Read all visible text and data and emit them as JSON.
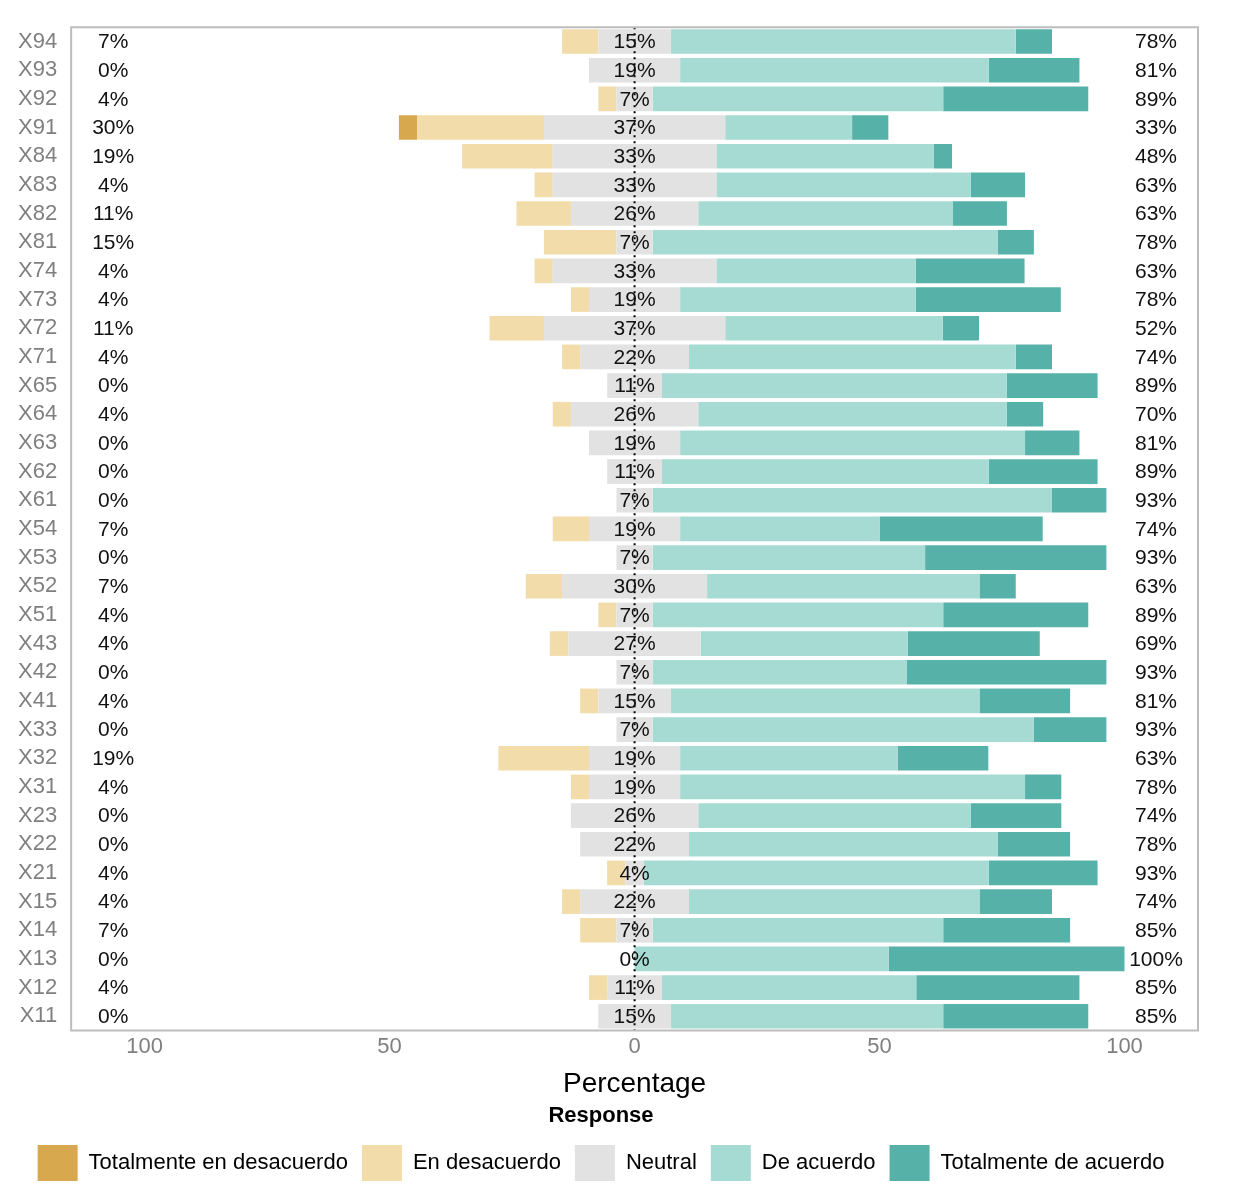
{
  "chart_data": {
    "type": "bar",
    "orientation": "horizontal",
    "stacked": true,
    "xlabel": "Percentage",
    "legend_title": "Response",
    "legend": "bottom",
    "grid": false,
    "categories": [
      "X94",
      "X93",
      "X92",
      "X91",
      "X84",
      "X83",
      "X82",
      "X81",
      "X74",
      "X73",
      "X72",
      "X71",
      "X65",
      "X64",
      "X63",
      "X62",
      "X61",
      "X54",
      "X53",
      "X52",
      "X51",
      "X43",
      "X42",
      "X41",
      "X33",
      "X32",
      "X31",
      "X23",
      "X22",
      "X21",
      "X15",
      "X14",
      "X13",
      "X12",
      "X11"
    ],
    "series": [
      {
        "name": "Neutral",
        "color": "#e2e2e2",
        "values": [
          -7.4,
          -9.3,
          -3.7,
          -18.5,
          -16.7,
          -16.7,
          -13,
          -3.7,
          -16.7,
          -9.3,
          -18.5,
          -11.1,
          -5.6,
          -13,
          -9.3,
          -5.6,
          -3.7,
          -9.3,
          -3.7,
          -14.8,
          -3.7,
          -13.5,
          -3.7,
          -7.4,
          -3.7,
          -9.3,
          -9.3,
          -13,
          -11.1,
          -1.9,
          -11.1,
          -3.7,
          0,
          -5.6,
          -7.4
        ]
      },
      {
        "name": "En desacuerdo",
        "color": "#f2dcaa",
        "values": [
          -7.4,
          0,
          -3.7,
          -25.9,
          -18.5,
          -3.7,
          -11.1,
          -14.8,
          -3.7,
          -3.7,
          -11.1,
          -3.7,
          0,
          -3.7,
          0,
          0,
          0,
          -7.4,
          0,
          -7.4,
          -3.7,
          -3.8,
          0,
          -3.7,
          0,
          -18.5,
          -3.7,
          0,
          0,
          -3.7,
          -3.7,
          -7.4,
          0,
          -3.7,
          0
        ]
      },
      {
        "name": "Totalmente en desacuerdo",
        "color": "#d8a84e",
        "values": [
          0,
          0,
          0,
          -3.7,
          0,
          0,
          0,
          0,
          0,
          0,
          0,
          0,
          0,
          0,
          0,
          0,
          0,
          0,
          0,
          0,
          0,
          0,
          0,
          0,
          0,
          0,
          0,
          0,
          0,
          0,
          0,
          0,
          0,
          0,
          0
        ]
      },
      {
        "color": "#e2e2e2",
        "values": [
          7.4,
          9.3,
          3.7,
          18.5,
          16.7,
          16.7,
          13,
          3.7,
          16.7,
          9.3,
          18.5,
          11.1,
          5.6,
          13,
          9.3,
          5.6,
          3.7,
          9.3,
          3.7,
          14.8,
          3.7,
          13.5,
          3.7,
          7.4,
          3.7,
          9.3,
          9.3,
          13,
          11.1,
          1.9,
          11.1,
          3.7,
          0,
          5.6,
          7.4
        ]
      },
      {
        "name": "De acuerdo",
        "color": "#a6dbd3",
        "values": [
          70.4,
          63,
          59.3,
          25.9,
          44.4,
          51.9,
          51.9,
          70.4,
          40.7,
          48.1,
          44.4,
          66.7,
          70.4,
          63,
          70.4,
          66.7,
          81.5,
          40.7,
          55.6,
          55.6,
          59.3,
          42.3,
          51.9,
          63,
          77.8,
          44.4,
          70.4,
          55.6,
          63,
          70.4,
          59.3,
          59.3,
          51.9,
          51.9,
          55.6
        ]
      },
      {
        "name": "Totalmente de acuerdo",
        "color": "#56b1a8",
        "values": [
          7.4,
          18.5,
          29.6,
          7.4,
          3.7,
          11.1,
          11.1,
          7.4,
          22.2,
          29.6,
          7.4,
          7.4,
          18.5,
          7.4,
          11.1,
          22.2,
          11.1,
          33.3,
          37,
          7.4,
          29.6,
          26.9,
          40.7,
          18.5,
          14.8,
          18.5,
          7.4,
          18.5,
          14.8,
          22.2,
          14.8,
          25.9,
          48.1,
          33.3,
          29.6
        ]
      }
    ],
    "xlim": [
      -115,
      115
    ],
    "xticks": [
      {
        "value": -100,
        "label": "100"
      },
      {
        "value": -50,
        "label": "50"
      },
      0,
      50,
      100
    ],
    "ref_lines": [
      {
        "axis": "x",
        "value": 0,
        "line_style": "dotted",
        "color": "#000000"
      }
    ],
    "annotations": [
      "7%",
      "0%",
      "4%",
      "30%",
      "19%",
      "4%",
      "11%",
      "15%",
      "4%",
      "4%",
      "11%",
      "4%",
      "0%",
      "4%",
      "0%",
      "0%",
      "0%",
      "7%",
      "0%",
      "7%",
      "4%",
      "4%",
      "0%",
      "4%",
      "0%",
      "19%",
      "4%",
      "0%",
      "0%",
      "4%",
      "4%",
      "7%",
      "0%",
      "4%",
      "0%",
      "78%",
      "81%",
      "89%",
      "33%",
      "48%",
      "63%",
      "63%",
      "78%",
      "63%",
      "78%",
      "52%",
      "74%",
      "89%",
      "70%",
      "81%",
      "89%",
      "93%",
      "74%",
      "93%",
      "63%",
      "89%",
      "69%",
      "93%",
      "81%",
      "93%",
      "63%",
      "78%",
      "74%",
      "78%",
      "93%",
      "74%",
      "85%",
      "100%",
      "85%",
      "85%",
      "15%",
      "19%",
      "7%",
      "37%",
      "33%",
      "33%",
      "26%",
      "7%",
      "33%",
      "19%",
      "37%",
      "22%",
      "11%",
      "26%",
      "19%",
      "11%",
      "7%",
      "19%",
      "7%",
      "30%",
      "7%",
      "27%",
      "7%",
      "15%",
      "7%",
      "19%",
      "19%",
      "26%",
      "22%",
      "4%",
      "22%",
      "7%",
      "0%",
      "11%",
      "15%"
    ]
  }
}
